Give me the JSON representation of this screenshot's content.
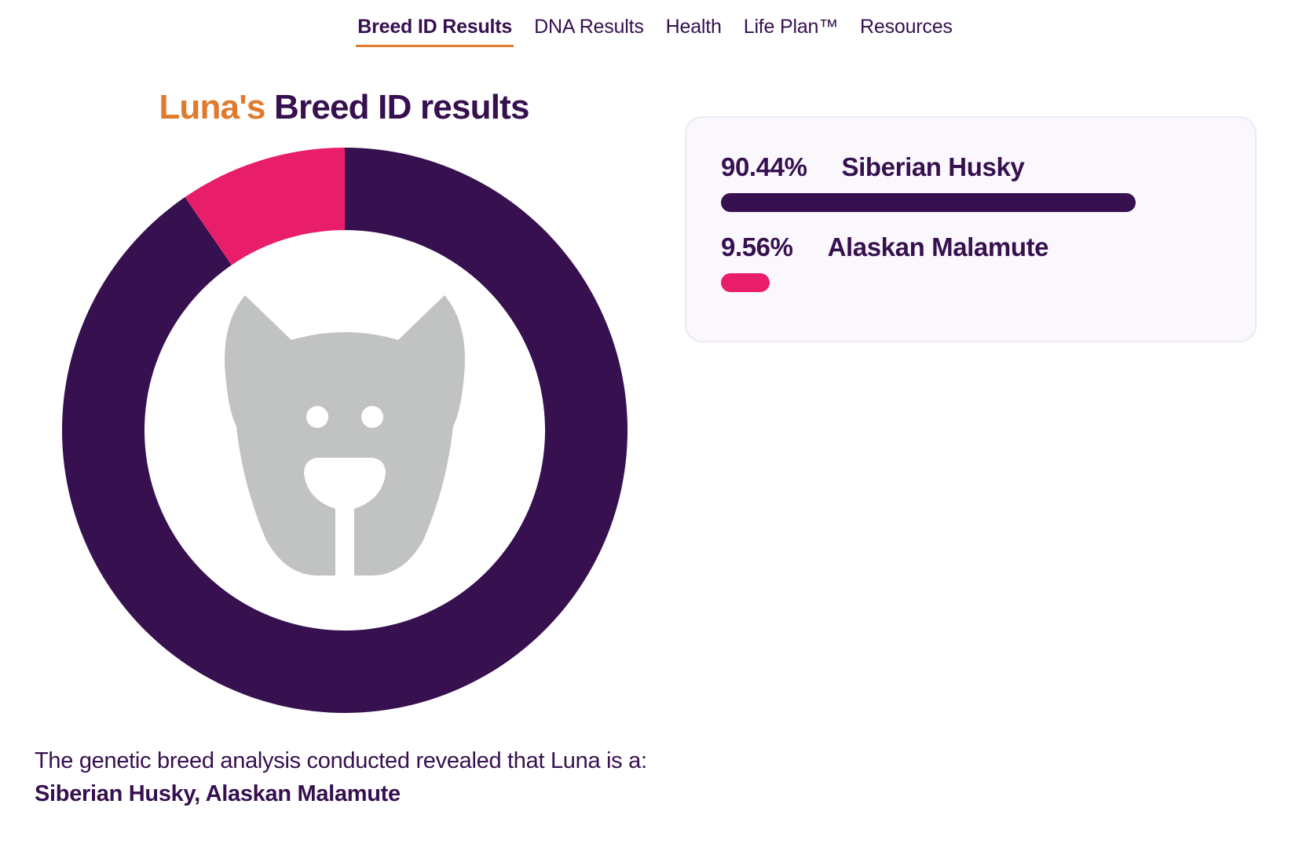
{
  "nav": {
    "tabs": [
      {
        "label": "Breed ID Results",
        "active": true
      },
      {
        "label": "DNA Results",
        "active": false
      },
      {
        "label": "Health",
        "active": false
      },
      {
        "label": "Life Plan™",
        "active": false
      },
      {
        "label": "Resources",
        "active": false
      }
    ]
  },
  "heading": {
    "name": "Luna's",
    "title": "Breed ID results"
  },
  "results": [
    {
      "percent_label": "90.44%",
      "percent": 90.44,
      "breed": "Siberian Husky",
      "color": "#36104f"
    },
    {
      "percent_label": "9.56%",
      "percent": 9.56,
      "breed": "Alaskan Malamute",
      "color": "#e91e6a"
    }
  ],
  "summary": {
    "text": "The genetic breed analysis conducted revealed that Luna is a:",
    "breeds": "Siberian Husky, Alaskan Malamute"
  },
  "icons": {
    "center": "dog-face-icon"
  },
  "colors": {
    "accent": "#e07b2e",
    "primary": "#36104f",
    "secondary": "#e91e6a",
    "icon_gray": "#c1c2c2"
  }
}
